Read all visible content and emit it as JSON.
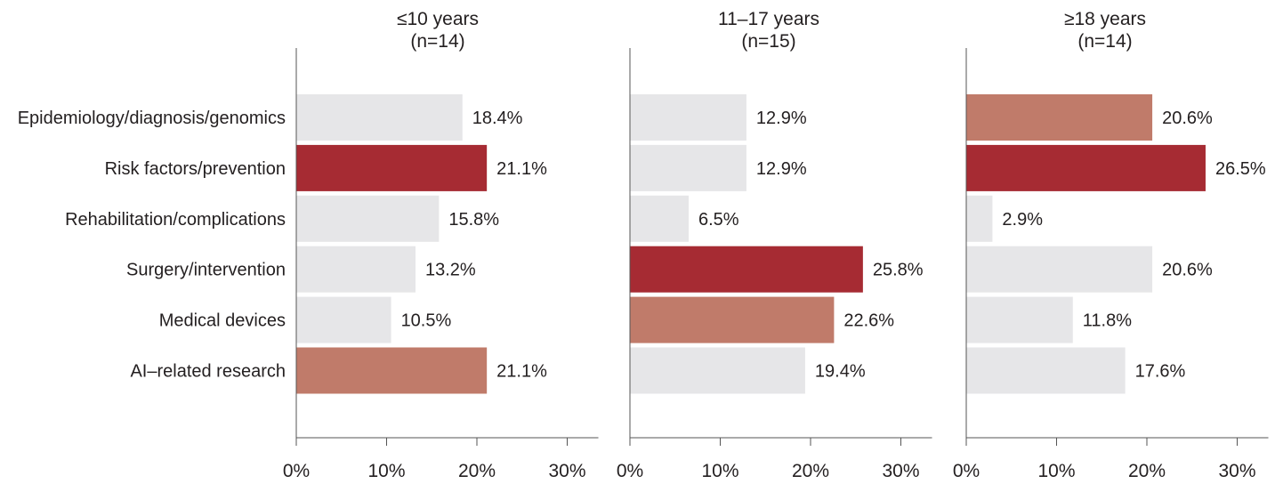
{
  "chart_data": {
    "type": "bar",
    "orientation": "horizontal",
    "categories": [
      "Epidemiology/diagnosis/genomics",
      "Risk factors/prevention",
      "Rehabilitation/complications",
      "Surgery/intervention",
      "Medical devices",
      "AI–related research"
    ],
    "xlim": [
      0,
      30
    ],
    "x_ticks": [
      "0%",
      "10%",
      "20%",
      "30%"
    ],
    "grid": false,
    "legend": "none",
    "panels": [
      {
        "title": "≤10 years",
        "subtitle": "(n=14)",
        "values": [
          18.4,
          21.1,
          15.8,
          13.2,
          10.5,
          21.1
        ],
        "labels": [
          "18.4%",
          "21.1%",
          "15.8%",
          "13.2%",
          "10.5%",
          "21.1%"
        ],
        "highlight": [
          "none",
          "first",
          "none",
          "none",
          "none",
          "second"
        ]
      },
      {
        "title": "11–17 years",
        "subtitle": "(n=15)",
        "values": [
          12.9,
          12.9,
          6.5,
          25.8,
          22.6,
          19.4
        ],
        "labels": [
          "12.9%",
          "12.9%",
          "6.5%",
          "25.8%",
          "22.6%",
          "19.4%"
        ],
        "highlight": [
          "none",
          "none",
          "none",
          "first",
          "second",
          "none"
        ]
      },
      {
        "title": "≥18 years",
        "subtitle": "(n=14)",
        "values": [
          20.6,
          26.5,
          2.9,
          20.6,
          11.8,
          17.6
        ],
        "labels": [
          "20.6%",
          "26.5%",
          "2.9%",
          "20.6%",
          "11.8%",
          "17.6%"
        ],
        "highlight": [
          "second",
          "first",
          "none",
          "none",
          "none",
          "none"
        ]
      }
    ],
    "colors": {
      "first": "#a62b33",
      "second": "#c07b6a",
      "none": "#e6e6e8",
      "axis": "#555555"
    }
  }
}
